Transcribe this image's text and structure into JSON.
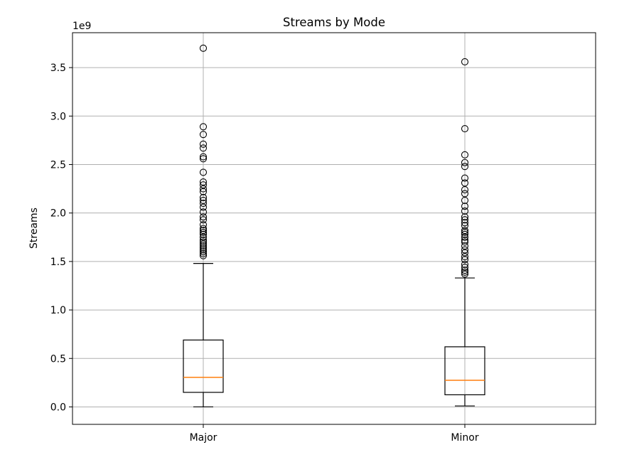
{
  "chart_data": {
    "type": "box",
    "title": "Streams by Mode",
    "xlabel": "",
    "ylabel": "Streams",
    "y_offset_label": "1e9",
    "ylim": [
      -0.18,
      3.86
    ],
    "yticks": [
      0.0,
      0.5,
      1.0,
      1.5,
      2.0,
      2.5,
      3.0,
      3.5
    ],
    "ytick_labels": [
      "0.0",
      "0.5",
      "1.0",
      "1.5",
      "2.0",
      "2.5",
      "3.0",
      "3.5"
    ],
    "grid": true,
    "categories": [
      "Major",
      "Minor"
    ],
    "boxes": [
      {
        "name": "Major",
        "whisker_low": 0.0,
        "q1": 0.15,
        "median": 0.305,
        "q3": 0.69,
        "whisker_high": 1.48,
        "outliers": [
          3.7,
          2.89,
          2.81,
          2.71,
          2.67,
          2.58,
          2.56,
          2.42,
          2.32,
          2.29,
          2.25,
          2.22,
          2.16,
          2.13,
          2.1,
          2.06,
          2.01,
          1.96,
          1.93,
          1.88,
          1.84,
          1.82,
          1.8,
          1.78,
          1.75,
          1.72,
          1.7,
          1.68,
          1.66,
          1.64,
          1.62,
          1.6,
          1.58,
          1.56
        ]
      },
      {
        "name": "Minor",
        "whisker_low": 0.01,
        "q1": 0.125,
        "median": 0.275,
        "q3": 0.62,
        "whisker_high": 1.33,
        "outliers": [
          3.56,
          2.87,
          2.6,
          2.52,
          2.48,
          2.36,
          2.31,
          2.24,
          2.2,
          2.13,
          2.07,
          2.02,
          1.96,
          1.93,
          1.9,
          1.87,
          1.82,
          1.8,
          1.78,
          1.75,
          1.72,
          1.7,
          1.66,
          1.62,
          1.59,
          1.55,
          1.52,
          1.47,
          1.44,
          1.41,
          1.39,
          1.37
        ]
      }
    ],
    "colors": {
      "box": "#000000",
      "median": "#ff7f0e",
      "grid": "#b0b0b0",
      "outlier": "#000000"
    }
  }
}
